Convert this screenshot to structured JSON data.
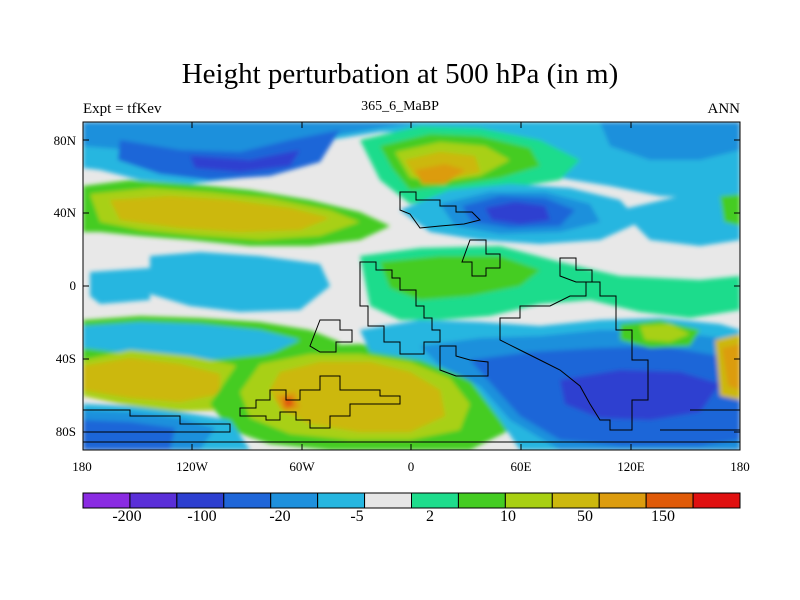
{
  "title": "Height perturbation at 500 hPa (in m)",
  "left_string": "Expt = tfKev",
  "center_string": "365_6_MaBP",
  "right_string": "ANN",
  "lat_ticks": [
    "80N",
    "40N",
    "0",
    "40S",
    "80S"
  ],
  "lon_ticks": [
    "180",
    "120W",
    "60W",
    "0",
    "60E",
    "120E",
    "180"
  ],
  "colorbar_labels": [
    "-200",
    "-100",
    "-20",
    "-5",
    "2",
    "10",
    "50",
    "150"
  ],
  "colorbar_colors": [
    "#8a2be2",
    "#5a2fd8",
    "#2d3fd0",
    "#1f66d8",
    "#1e90dc",
    "#26b6e0",
    "#e6e6e6",
    "#1edc8c",
    "#44cc22",
    "#a8d012",
    "#ccb80e",
    "#dc9c0e",
    "#e05a08",
    "#e01010"
  ]
}
